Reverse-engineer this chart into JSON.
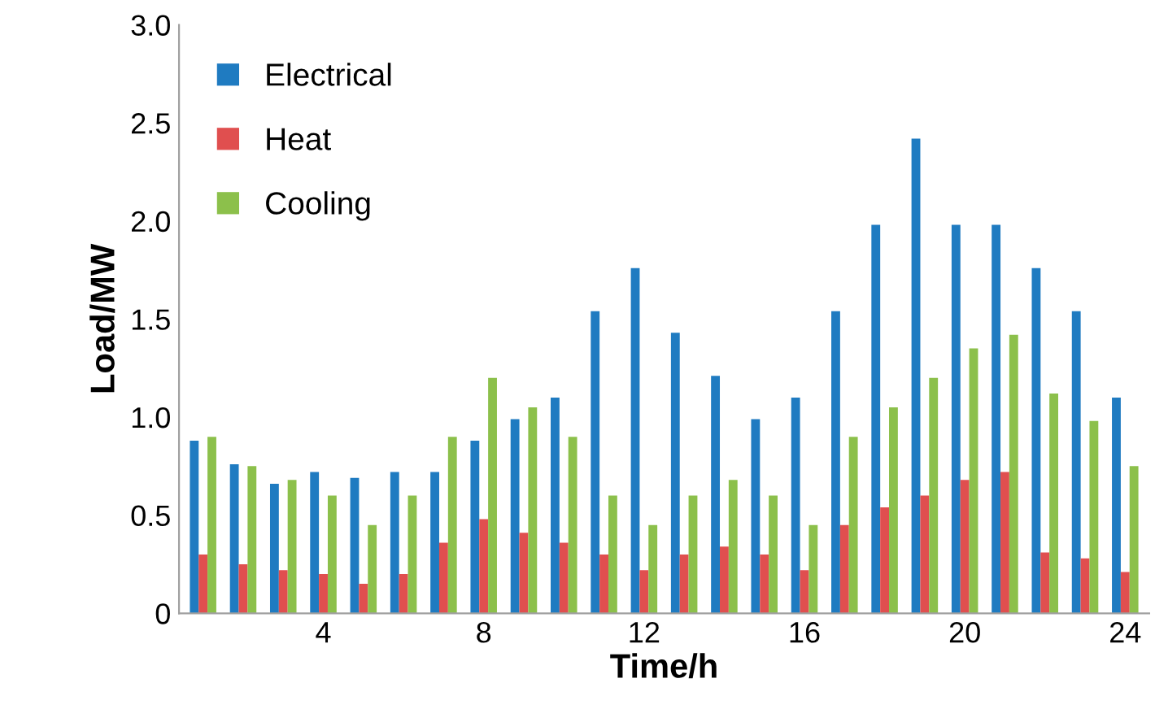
{
  "chart_data": {
    "type": "bar",
    "xlabel": "Time/h",
    "ylabel": "Load/MW",
    "categories": [
      null,
      null,
      null,
      "4",
      null,
      null,
      null,
      "8",
      null,
      null,
      null,
      "12",
      null,
      null,
      null,
      "16",
      null,
      null,
      null,
      "20",
      null,
      null,
      null,
      "24"
    ],
    "series": [
      {
        "name": "Electrical",
        "color": "#1f7bc1",
        "values": [
          0.88,
          0.76,
          0.66,
          0.72,
          0.69,
          0.72,
          0.72,
          0.88,
          0.99,
          1.1,
          1.54,
          1.76,
          1.43,
          1.21,
          0.99,
          1.1,
          1.54,
          1.98,
          2.42,
          1.98,
          1.98,
          1.76,
          1.54,
          1.1
        ]
      },
      {
        "name": "Heat",
        "color": "#e04f4f",
        "values": [
          0.3,
          0.25,
          0.22,
          0.2,
          0.15,
          0.2,
          0.36,
          0.48,
          0.41,
          0.36,
          0.3,
          0.22,
          0.3,
          0.34,
          0.3,
          0.22,
          0.45,
          0.54,
          0.6,
          0.68,
          0.72,
          0.31,
          0.28,
          0.21
        ]
      },
      {
        "name": "Cooling",
        "color": "#8cc04b",
        "values": [
          0.9,
          0.75,
          0.68,
          0.6,
          0.45,
          0.6,
          0.9,
          1.2,
          1.05,
          0.9,
          0.6,
          0.45,
          0.6,
          0.68,
          0.6,
          0.45,
          0.9,
          1.05,
          1.2,
          1.35,
          1.42,
          1.12,
          0.98,
          0.75
        ]
      }
    ],
    "ylim": [
      0,
      3.0
    ],
    "yticks": [
      0,
      {
        "value": 0.5,
        "label": "0.5"
      },
      {
        "value": 1.0,
        "label": "1.0"
      },
      {
        "value": 1.5,
        "label": "1.5"
      },
      {
        "value": 2.0,
        "label": "2.0"
      },
      {
        "value": 2.5,
        "label": "2.5"
      },
      {
        "value": 3.0,
        "label": "3.0"
      }
    ],
    "grid": false,
    "legend": "top left"
  }
}
